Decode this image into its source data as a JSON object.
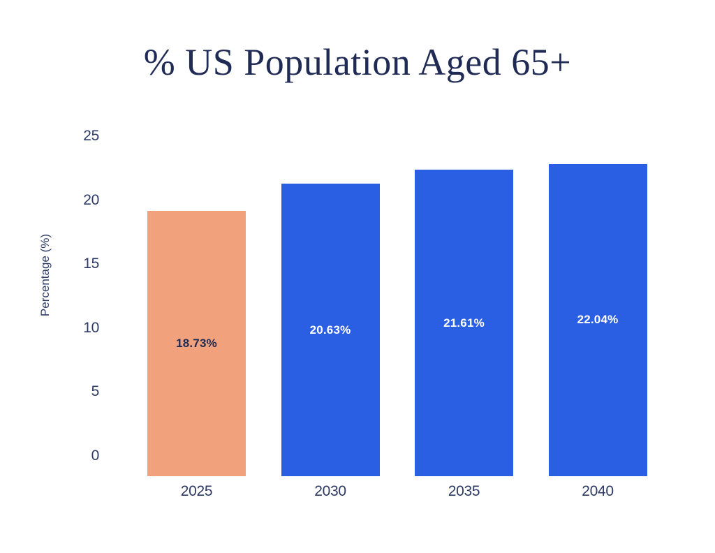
{
  "chart_data": {
    "type": "bar",
    "title": "% US Population Aged 65+",
    "ylabel": "Percentage (%)",
    "xlabel": "",
    "categories": [
      "2025",
      "2030",
      "2035",
      "2040"
    ],
    "values": [
      18.73,
      20.63,
      21.61,
      22.04
    ],
    "value_labels": [
      "18.73%",
      "20.63%",
      "21.61%",
      "22.04%"
    ],
    "ylim": [
      0,
      25
    ],
    "yticks": [
      0,
      5,
      10,
      15,
      20,
      25
    ],
    "grid": false,
    "legend": false,
    "highlight_index": 0,
    "colors": {
      "highlight_bar": "#f1a17c",
      "default_bar": "#2a5fe4",
      "highlight_label": "#1e2a52",
      "default_label": "#ffffff",
      "title_text": "#1f2a55",
      "axis_text": "#2e3a66"
    }
  }
}
